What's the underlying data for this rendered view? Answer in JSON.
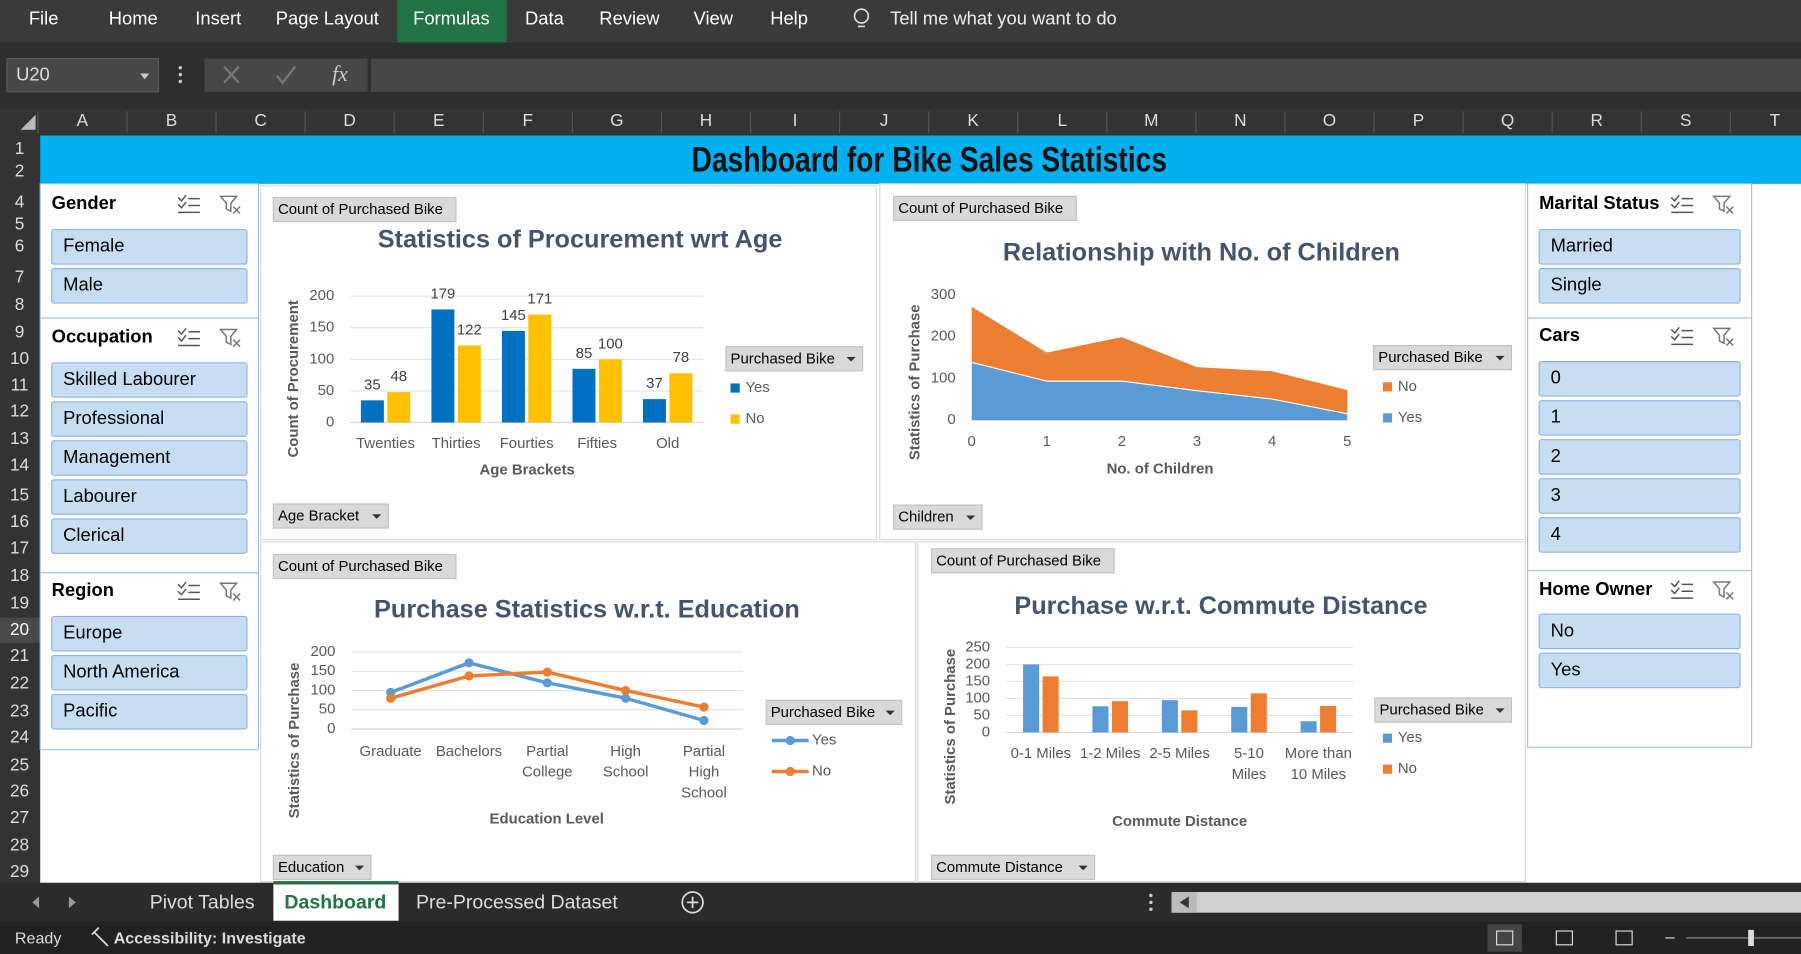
{
  "ribbon": {
    "tabs": [
      "File",
      "Home",
      "Insert",
      "Page Layout",
      "Formulas",
      "Data",
      "Review",
      "View",
      "Help"
    ],
    "active_index": 4,
    "search": "Tell me what you want to do"
  },
  "formula_bar": {
    "name_box": "U20",
    "function_icon": "fx"
  },
  "columns": [
    "A",
    "B",
    "C",
    "D",
    "E",
    "F",
    "G",
    "H",
    "I",
    "J",
    "K",
    "L",
    "M",
    "N",
    "O",
    "P",
    "Q",
    "R",
    "S",
    "T"
  ],
  "rows": [
    1,
    2,
    4,
    5,
    6,
    7,
    8,
    9,
    10,
    11,
    12,
    13,
    14,
    15,
    16,
    17,
    18,
    19,
    20,
    21,
    22,
    23,
    24,
    25,
    26,
    27,
    28,
    29
  ],
  "selected_row": 20,
  "title": "Dashboard for Bike Sales Statistics",
  "slicers": [
    {
      "title": "Gender",
      "items": [
        "Female",
        "Male"
      ]
    },
    {
      "title": "Occupation",
      "items": [
        "Skilled Labourer",
        "Professional",
        "Management",
        "Labourer",
        "Clerical"
      ]
    },
    {
      "title": "Region",
      "items": [
        "Europe",
        "North America",
        "Pacific"
      ]
    },
    {
      "title": "Marital Status",
      "items": [
        "Married",
        "Single"
      ]
    },
    {
      "title": "Cars",
      "items": [
        "0",
        "1",
        "2",
        "3",
        "4"
      ]
    },
    {
      "title": "Home Owner",
      "items": [
        "No",
        "Yes"
      ]
    }
  ],
  "charts": [
    {
      "type": "bar",
      "title": "Statistics of Procurement wrt Age",
      "value_field": "Count of Purchased Bike",
      "axis_field": "Age Bracket",
      "y_label": "Count of Procurement",
      "x_label": "Age Brackets",
      "legend_title": "Purchased Bike",
      "categories": [
        "Twenties",
        "Thirties",
        "Fourties",
        "Fifties",
        "Old"
      ],
      "series": [
        {
          "name": "Yes",
          "color": "#0070c0",
          "values": [
            35,
            179,
            145,
            85,
            37
          ]
        },
        {
          "name": "No",
          "color": "#ffc000",
          "values": [
            48,
            122,
            171,
            100,
            78
          ]
        }
      ],
      "ylim": [
        0,
        200
      ],
      "yticks": [
        0,
        50,
        100,
        150,
        200
      ],
      "grid": true,
      "data_labels": true
    },
    {
      "type": "area",
      "title": "Relationship with No. of Children",
      "value_field": "Count of Purchased Bike",
      "axis_field": "Children",
      "y_label": "Statistics of Purchase",
      "x_label": "No. of Children",
      "legend_title": "Purchased Bike",
      "stacked": true,
      "legend_reversed": true,
      "x": [
        0,
        1,
        2,
        3,
        4,
        5
      ],
      "series": [
        {
          "name": "Yes",
          "color": "#5b9bd5",
          "values": [
            140,
            95,
            95,
            72,
            52,
            17
          ]
        },
        {
          "name": "No",
          "color": "#ed7d31",
          "values": [
            135,
            70,
            107,
            58,
            68,
            58
          ]
        }
      ],
      "xlim": [
        0,
        5
      ],
      "xticks": [
        0,
        1,
        2,
        3,
        4,
        5
      ],
      "ylim": [
        0,
        300
      ],
      "yticks": [
        0,
        100,
        200,
        300
      ],
      "grid": false
    },
    {
      "type": "line",
      "title": "Purchase Statistics w.r.t. Education",
      "value_field": "Count of Purchased Bike",
      "axis_field": "Education",
      "y_label": "Statistics of Purchase",
      "x_label": "Education Level",
      "legend_title": "Purchased Bike",
      "categories": [
        "Graduate",
        "Bachelors",
        "Partial College",
        "High School",
        "Partial High School"
      ],
      "series": [
        {
          "name": "Yes",
          "color": "#5b9bd5",
          "values": [
            95,
            172,
            120,
            80,
            22
          ]
        },
        {
          "name": "No",
          "color": "#ed7d31",
          "values": [
            80,
            138,
            148,
            100,
            57
          ]
        }
      ],
      "ylim": [
        0,
        200
      ],
      "yticks": [
        0,
        50,
        100,
        150,
        200
      ],
      "grid": true
    },
    {
      "type": "bar",
      "title": "Purchase w.r.t. Commute Distance",
      "value_field": "Count of Purchased Bike",
      "axis_field": "Commute Distance",
      "y_label": "Statistics of Purchase",
      "x_label": "Commute Distance",
      "legend_title": "Purchased Bike",
      "categories": [
        "0-1 Miles",
        "1-2 Miles",
        "2-5 Miles",
        "5-10 Miles",
        "More than 10 Miles"
      ],
      "series": [
        {
          "name": "Yes",
          "color": "#5b9bd5",
          "values": [
            200,
            77,
            95,
            75,
            33
          ]
        },
        {
          "name": "No",
          "color": "#ed7d31",
          "values": [
            165,
            92,
            65,
            115,
            78
          ]
        }
      ],
      "ylim": [
        0,
        250
      ],
      "yticks": [
        0,
        50,
        100,
        150,
        200,
        250
      ],
      "grid": true
    }
  ],
  "sheet_tabs": {
    "tabs": [
      "Pivot Tables",
      "Dashboard",
      "Pre-Processed Dataset"
    ],
    "active_index": 1
  },
  "status": {
    "mode": "Ready",
    "accessibility": "Accessibility: Investigate"
  }
}
